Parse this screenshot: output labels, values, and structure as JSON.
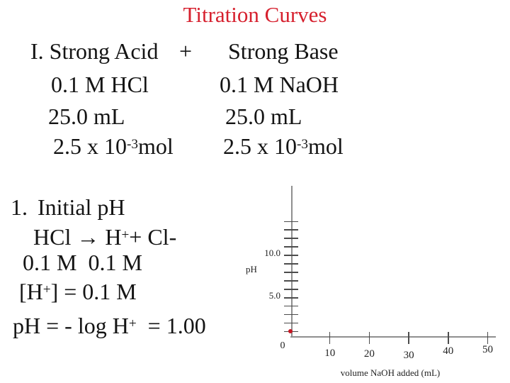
{
  "slide": {
    "title": "Titration Curves",
    "title_color": "#d6202e",
    "rows": {
      "r1a": "I. Strong Acid",
      "r1b": "+",
      "r1c": "Strong Base",
      "r2a": "0.1 M HCl",
      "r2b": "0.1 M NaOH",
      "r3a": "25.0 mL",
      "r3b": "25.0 mL",
      "r4_base": "2.5 x 10",
      "r4_sup": "-3",
      "r4_tail": "mol",
      "r5a": "1.",
      "r5b": "Initial pH",
      "r6a": "HCl → H",
      "r6_sup": "+",
      "r6b": "+ Cl-",
      "r7": "0.1 M  0.1 M",
      "r8a": "[H",
      "r8_sup": "+",
      "r8b": "] = 0.1 M",
      "r9a": "pH = - log H",
      "r9_sup": "+",
      "r9b": "  = 1.00"
    }
  },
  "chart_data": {
    "type": "scatter",
    "title": "",
    "xlabel": "volume NaOH added (mL)",
    "ylabel": "pH",
    "origin_label": "0",
    "x_ticks": [
      10,
      20,
      30,
      40,
      50
    ],
    "y_ticks": [
      1,
      2,
      3,
      4,
      5,
      6,
      7,
      8,
      9,
      10,
      11,
      12,
      13,
      14
    ],
    "y_tick_labels": [
      {
        "value": 5,
        "label": "5.0"
      },
      {
        "value": 10,
        "label": "10.0"
      }
    ],
    "xlim": [
      0,
      52
    ],
    "ylim": [
      0,
      15
    ],
    "grid": false,
    "legend": null,
    "points": [
      {
        "x": 0,
        "y": 1.0
      }
    ],
    "point_color": "#c81622"
  }
}
